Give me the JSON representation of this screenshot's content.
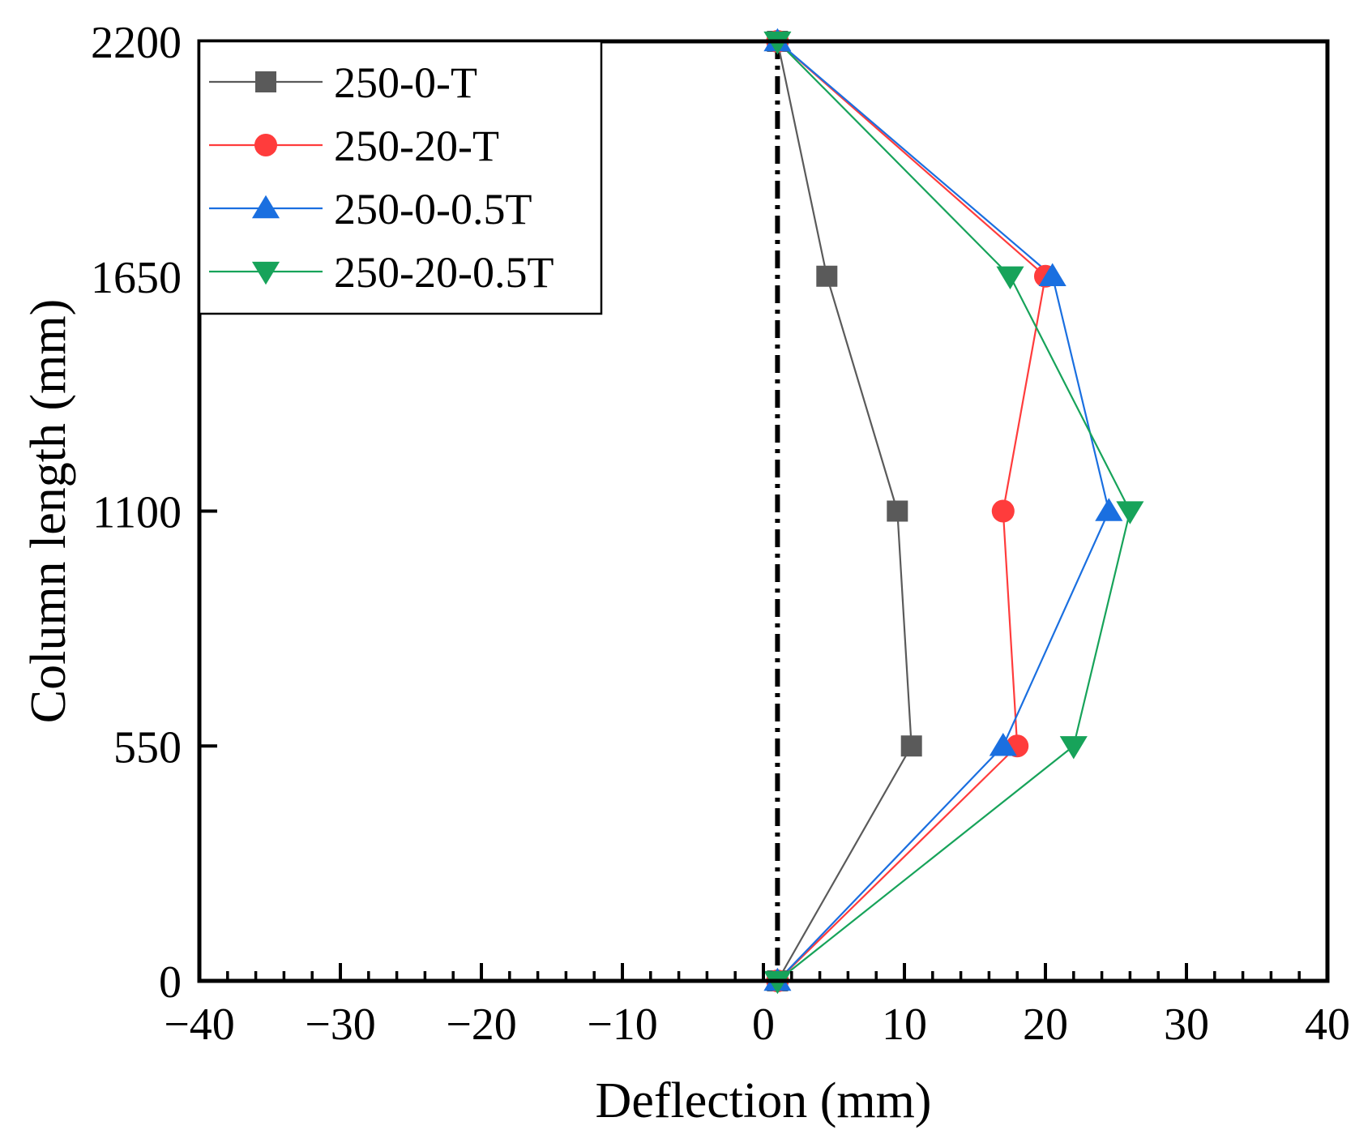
{
  "chart_data": {
    "type": "line",
    "title": "",
    "xlabel": "Deflection (mm)",
    "ylabel": "Column length (mm)",
    "xlim": [
      -40,
      40
    ],
    "ylim": [
      0,
      2200
    ],
    "x_ticks": [
      -40,
      -30,
      -20,
      -10,
      0,
      10,
      20,
      30,
      40
    ],
    "x_tick_labels": [
      "−40",
      "−30",
      "−20",
      "−10",
      "0",
      "10",
      "20",
      "30",
      "40"
    ],
    "y_ticks": [
      0,
      550,
      1100,
      1650,
      2200
    ],
    "y_tick_labels": [
      "0",
      "550",
      "1100",
      "1650",
      "2200"
    ],
    "grid": false,
    "legend_position": "top-left",
    "reference_line": {
      "x": 1,
      "style": "dash-dot",
      "color": "#000000"
    },
    "series": [
      {
        "name": "250-0-T",
        "color": "#5a5a5a",
        "marker": "square",
        "points": [
          [
            1,
            0
          ],
          [
            10.5,
            550
          ],
          [
            9.5,
            1100
          ],
          [
            4.5,
            1650
          ],
          [
            1,
            2200
          ]
        ]
      },
      {
        "name": "250-20-T",
        "color": "#ff3c3c",
        "marker": "circle",
        "points": [
          [
            1,
            0
          ],
          [
            18,
            550
          ],
          [
            17,
            1100
          ],
          [
            20,
            1650
          ],
          [
            1,
            2200
          ]
        ]
      },
      {
        "name": "250-0-0.5T",
        "color": "#1a6fe0",
        "marker": "triangle-up",
        "points": [
          [
            1,
            0
          ],
          [
            17,
            550
          ],
          [
            24.5,
            1100
          ],
          [
            20.5,
            1650
          ],
          [
            1,
            2200
          ]
        ]
      },
      {
        "name": "250-20-0.5T",
        "color": "#17a35a",
        "marker": "triangle-down",
        "points": [
          [
            1,
            0
          ],
          [
            22,
            550
          ],
          [
            26,
            1100
          ],
          [
            17.5,
            1650
          ],
          [
            1,
            2200
          ]
        ]
      }
    ]
  }
}
